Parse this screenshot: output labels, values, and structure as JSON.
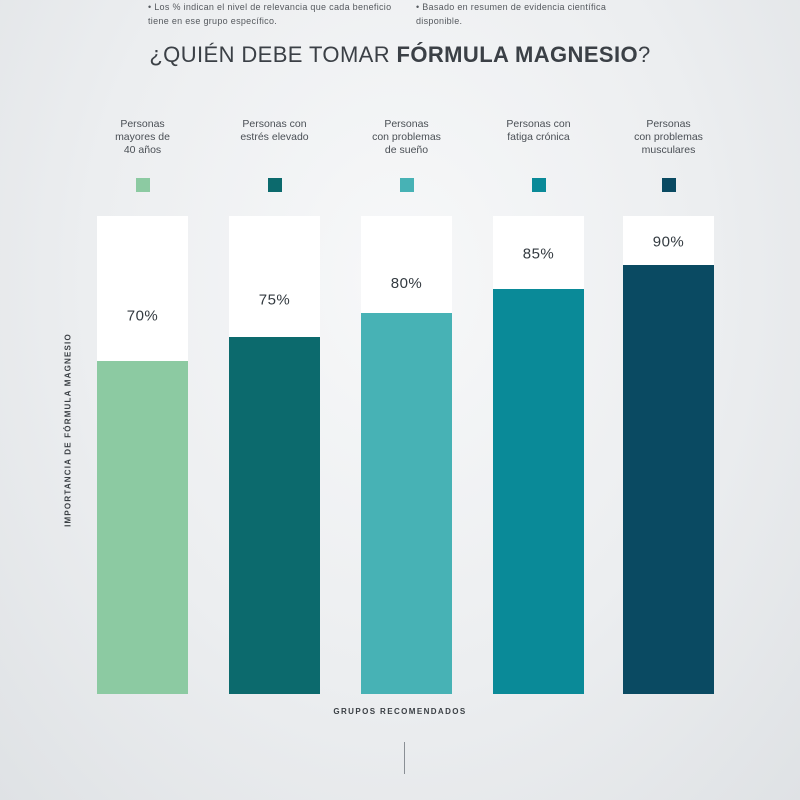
{
  "title": {
    "prefix": "¿QUIÉN DEBE TOMAR ",
    "bold": "FÓRMULA MAGNESIO",
    "suffix": "?"
  },
  "chart_data": {
    "type": "bar",
    "categories": [
      "Personas mayores de 40 años",
      "Personas con estrés elevado",
      "Personas con problemas de sueño",
      "Personas con fatiga crónica",
      "Personas con problemas musculares"
    ],
    "label_lines": [
      [
        "Personas",
        "mayores de",
        "40 años"
      ],
      [
        "Personas con",
        "estrés elevado"
      ],
      [
        "Personas",
        "con problemas",
        "de sueño"
      ],
      [
        "Personas con",
        "fatiga crónica"
      ],
      [
        "Personas",
        "con problemas",
        "musculares"
      ]
    ],
    "values": [
      70,
      75,
      80,
      85,
      90
    ],
    "value_labels": [
      "70%",
      "75%",
      "80%",
      "85%",
      "90%"
    ],
    "colors": [
      "#8ccaa2",
      "#0c6a6d",
      "#47b2b5",
      "#0a8a98",
      "#0a4a62"
    ],
    "ylim": [
      0,
      100
    ],
    "xlabel": "GRUPOS RECOMENDADOS",
    "ylabel": "IMPORTANCIA DE FÓRMULA MAGNESIO",
    "grid": false,
    "legend": "top"
  },
  "notes": {
    "left": "• Los % indican el nivel de relevancia que cada beneficio tiene en  ese grupo específico.",
    "right": "• Basado en resumen de evidencia científica disponible."
  }
}
